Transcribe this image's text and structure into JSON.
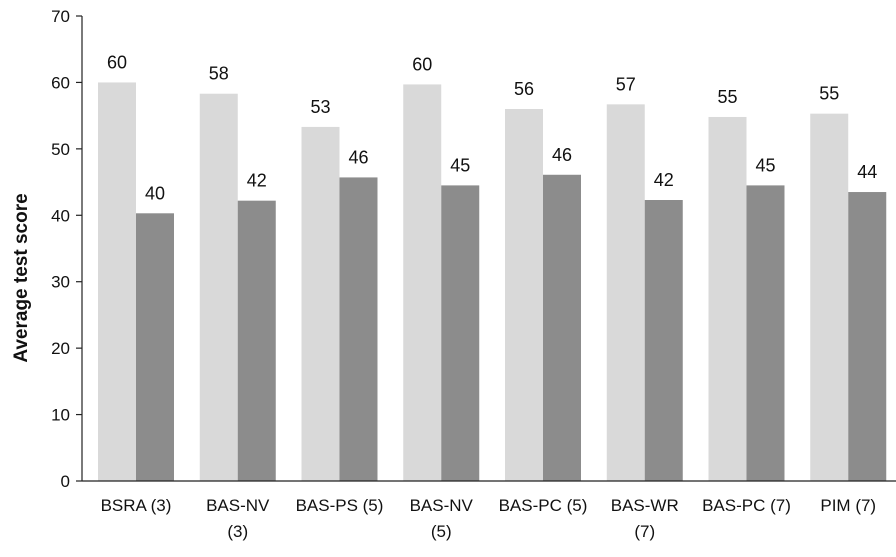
{
  "chart_data": {
    "type": "bar",
    "categories": [
      [
        "BSRA (3)"
      ],
      [
        "BAS-NV",
        "(3)"
      ],
      [
        "BAS-PS (5)"
      ],
      [
        "BAS-NV",
        "(5)"
      ],
      [
        "BAS-PC (5)"
      ],
      [
        "BAS-WR",
        "(7)"
      ],
      [
        "BAS-PC (7)"
      ],
      [
        "PIM (7)"
      ]
    ],
    "series": [
      {
        "color": "#d9d9d9",
        "values": [
          60,
          58.3,
          53.3,
          59.7,
          56,
          56.7,
          54.8,
          55.3
        ],
        "labels": [
          "60",
          "58",
          "53",
          "60",
          "56",
          "57",
          "55",
          "55"
        ]
      },
      {
        "color": "#8c8c8c",
        "values": [
          40.3,
          42.2,
          45.7,
          44.5,
          46.1,
          42.3,
          44.5,
          43.5
        ],
        "labels": [
          "40",
          "42",
          "46",
          "45",
          "46",
          "42",
          "45",
          "44"
        ]
      }
    ],
    "ylabel": "Average test score",
    "xlabel": "",
    "ylim": [
      0,
      70
    ],
    "yticks": [
      0,
      10,
      20,
      30,
      40,
      50,
      60,
      70
    ],
    "grid": false,
    "legend": "none"
  }
}
